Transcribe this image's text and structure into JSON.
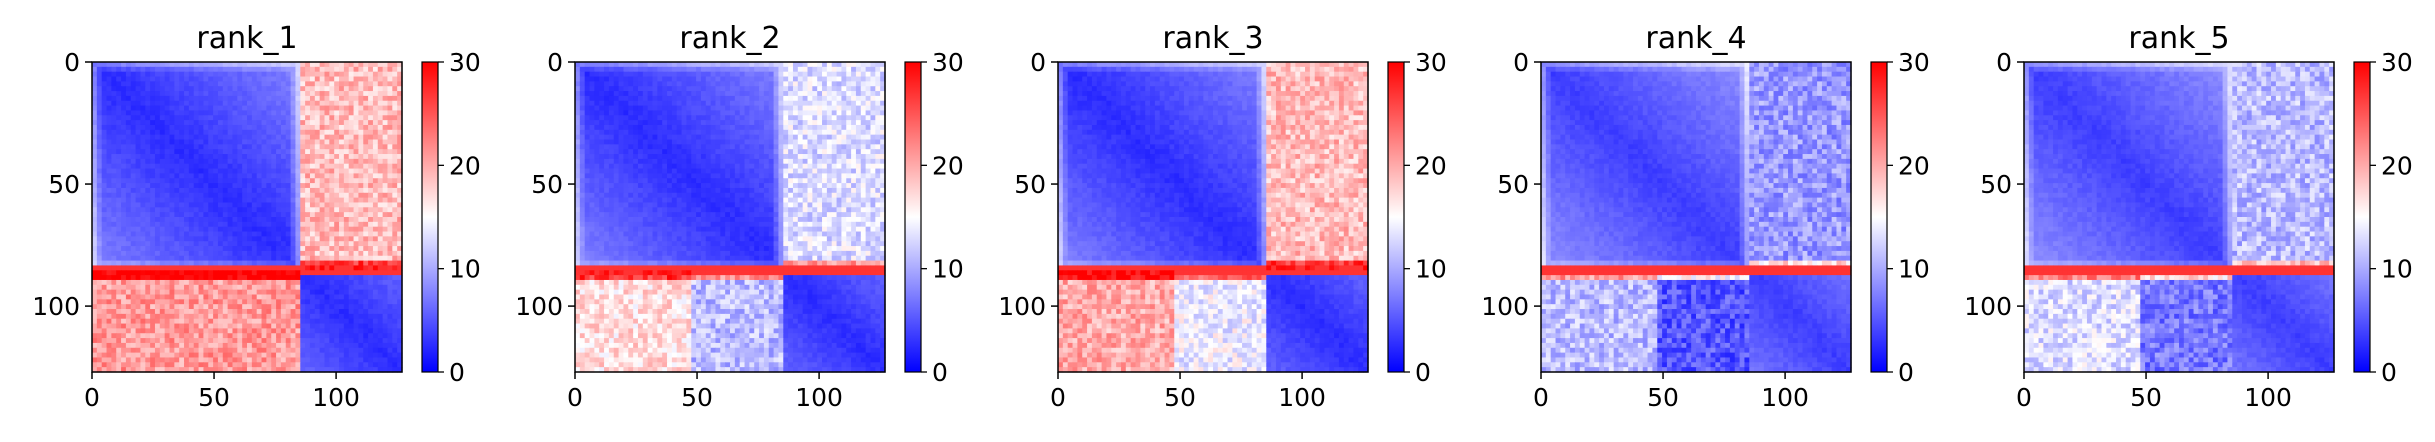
{
  "chart_data": [
    {
      "type": "heatmap",
      "title": "rank_1",
      "x_ticks": [
        0,
        50,
        100
      ],
      "y_ticks": [
        0,
        50,
        100
      ],
      "xlim": [
        0,
        127
      ],
      "ylim": [
        127,
        0
      ],
      "split_index": 85,
      "colorbar": {
        "ticks": [
          0,
          10,
          20,
          30
        ],
        "range": [
          0,
          30
        ]
      },
      "blocks": {
        "top_left": 2,
        "bottom_right": 2,
        "top_right": 19,
        "bottom_left": 21
      }
    },
    {
      "type": "heatmap",
      "title": "rank_2",
      "x_ticks": [
        0,
        50,
        100
      ],
      "y_ticks": [
        0,
        50,
        100
      ],
      "xlim": [
        0,
        127
      ],
      "ylim": [
        127,
        0
      ],
      "split_index": 85,
      "colorbar": {
        "ticks": [
          0,
          10,
          20,
          30
        ],
        "range": [
          0,
          30
        ]
      },
      "blocks": {
        "top_left": 2,
        "bottom_right": 2,
        "top_right": 13,
        "bottom_left": 17
      }
    },
    {
      "type": "heatmap",
      "title": "rank_3",
      "x_ticks": [
        0,
        50,
        100
      ],
      "y_ticks": [
        0,
        50,
        100
      ],
      "xlim": [
        0,
        127
      ],
      "ylim": [
        127,
        0
      ],
      "split_index": 85,
      "colorbar": {
        "ticks": [
          0,
          10,
          20,
          30
        ],
        "range": [
          0,
          30
        ]
      },
      "blocks": {
        "top_left": 2,
        "bottom_right": 2,
        "top_right": 19,
        "bottom_left": 20
      }
    },
    {
      "type": "heatmap",
      "title": "rank_4",
      "x_ticks": [
        0,
        50,
        100
      ],
      "y_ticks": [
        0,
        50,
        100
      ],
      "xlim": [
        0,
        127
      ],
      "ylim": [
        127,
        0
      ],
      "split_index": 85,
      "colorbar": {
        "ticks": [
          0,
          10,
          20,
          30
        ],
        "range": [
          0,
          30
        ]
      },
      "blocks": {
        "top_left": 3,
        "bottom_right": 3,
        "top_right": 9,
        "bottom_left": 11
      }
    },
    {
      "type": "heatmap",
      "title": "rank_5",
      "x_ticks": [
        0,
        50,
        100
      ],
      "y_ticks": [
        0,
        50,
        100
      ],
      "xlim": [
        0,
        127
      ],
      "ylim": [
        127,
        0
      ],
      "split_index": 85,
      "colorbar": {
        "ticks": [
          0,
          10,
          20,
          30
        ],
        "range": [
          0,
          30
        ]
      },
      "blocks": {
        "top_left": 3,
        "bottom_right": 3,
        "top_right": 11,
        "bottom_left": 13
      }
    }
  ],
  "colors": {
    "low": "#0000ff",
    "mid": "#ffffff",
    "high": "#ff0000"
  }
}
